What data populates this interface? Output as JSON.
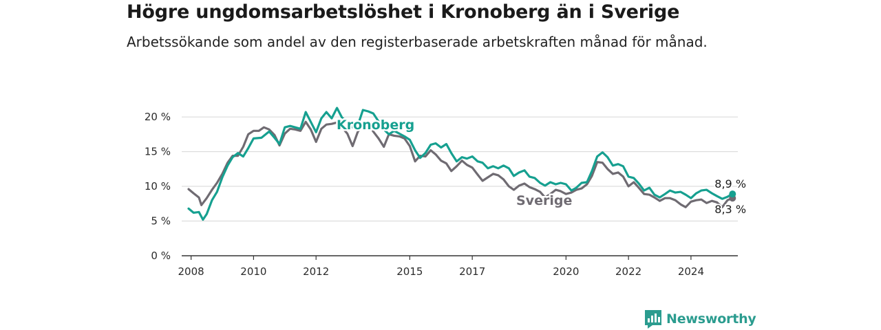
{
  "title": "Högre ungdomsarbetslöshet i Kronoberg än i Sverige",
  "subtitle": "Arbetssökande som andel av den registerbaserade arbetskraften månad för månad.",
  "brand": {
    "name": "Newsworthy",
    "icon": "bar-chart-icon",
    "color": "#2b9c8f"
  },
  "chart_data": {
    "type": "line",
    "title": "Högre ungdomsarbetslöshet i Kronoberg än i Sverige",
    "subtitle": "Arbetssökande som andel av den registerbaserade arbetskraften månad för månad.",
    "xlabel": "",
    "ylabel": "",
    "xlim": [
      2007.7,
      2025.5
    ],
    "ylim": [
      0,
      21
    ],
    "x_ticks": [
      2008,
      2010,
      2012,
      2015,
      2017,
      2020,
      2022,
      2024
    ],
    "x_tick_labels": [
      "2008",
      "2010",
      "2012",
      "2015",
      "2017",
      "2020",
      "2022",
      "2024"
    ],
    "y_ticks": [
      0,
      5,
      10,
      15,
      20
    ],
    "y_tick_labels": [
      "0 %",
      "5 %",
      "10 %",
      "15 %",
      "20 %"
    ],
    "grid": "horizontal",
    "series": [
      {
        "name": "Kronoberg",
        "color": "#16a090",
        "end_label": "8,9 %",
        "points": [
          [
            2007.92,
            6.8
          ],
          [
            2008.08,
            6.2
          ],
          [
            2008.25,
            6.3
          ],
          [
            2008.38,
            5.2
          ],
          [
            2008.5,
            6.0
          ],
          [
            2008.67,
            8.0
          ],
          [
            2008.83,
            9.2
          ],
          [
            2009.0,
            11.3
          ],
          [
            2009.17,
            13.0
          ],
          [
            2009.33,
            14.2
          ],
          [
            2009.5,
            14.8
          ],
          [
            2009.67,
            14.3
          ],
          [
            2009.83,
            15.5
          ],
          [
            2010.0,
            16.9
          ],
          [
            2010.25,
            17.0
          ],
          [
            2010.5,
            17.9
          ],
          [
            2010.67,
            17.0
          ],
          [
            2010.83,
            16.1
          ],
          [
            2011.0,
            18.5
          ],
          [
            2011.17,
            18.7
          ],
          [
            2011.33,
            18.5
          ],
          [
            2011.5,
            18.3
          ],
          [
            2011.67,
            20.7
          ],
          [
            2011.83,
            19.3
          ],
          [
            2012.0,
            17.8
          ],
          [
            2012.17,
            19.8
          ],
          [
            2012.33,
            20.7
          ],
          [
            2012.5,
            19.8
          ],
          [
            2012.67,
            21.3
          ],
          [
            2012.83,
            19.9
          ],
          [
            2013.0,
            19.3
          ],
          [
            2013.17,
            18.5
          ],
          [
            2013.33,
            18.7
          ],
          [
            2013.5,
            21.0
          ],
          [
            2013.67,
            20.8
          ],
          [
            2013.83,
            20.5
          ],
          [
            2014.17,
            18.2
          ],
          [
            2014.33,
            17.5
          ],
          [
            2014.5,
            18.0
          ],
          [
            2014.83,
            17.2
          ],
          [
            2015.0,
            16.7
          ],
          [
            2015.17,
            15.2
          ],
          [
            2015.33,
            14.1
          ],
          [
            2015.5,
            14.8
          ],
          [
            2015.67,
            16.0
          ],
          [
            2015.83,
            16.2
          ],
          [
            2016.0,
            15.6
          ],
          [
            2016.17,
            16.1
          ],
          [
            2016.33,
            14.8
          ],
          [
            2016.5,
            13.6
          ],
          [
            2016.67,
            14.2
          ],
          [
            2016.83,
            14.0
          ],
          [
            2017.0,
            14.3
          ],
          [
            2017.17,
            13.6
          ],
          [
            2017.33,
            13.4
          ],
          [
            2017.5,
            12.6
          ],
          [
            2017.67,
            12.9
          ],
          [
            2017.83,
            12.6
          ],
          [
            2018.0,
            13.0
          ],
          [
            2018.17,
            12.6
          ],
          [
            2018.33,
            11.5
          ],
          [
            2018.5,
            12.0
          ],
          [
            2018.67,
            12.3
          ],
          [
            2018.83,
            11.4
          ],
          [
            2019.0,
            11.2
          ],
          [
            2019.17,
            10.5
          ],
          [
            2019.33,
            10.1
          ],
          [
            2019.5,
            10.6
          ],
          [
            2019.67,
            10.3
          ],
          [
            2019.83,
            10.5
          ],
          [
            2020.0,
            10.3
          ],
          [
            2020.17,
            9.4
          ],
          [
            2020.33,
            9.8
          ],
          [
            2020.5,
            10.5
          ],
          [
            2020.67,
            10.6
          ],
          [
            2020.83,
            12.2
          ],
          [
            2021.0,
            14.3
          ],
          [
            2021.17,
            14.9
          ],
          [
            2021.33,
            14.2
          ],
          [
            2021.5,
            13.0
          ],
          [
            2021.67,
            13.2
          ],
          [
            2021.83,
            12.9
          ],
          [
            2022.0,
            11.4
          ],
          [
            2022.17,
            11.2
          ],
          [
            2022.33,
            10.4
          ],
          [
            2022.5,
            9.4
          ],
          [
            2022.67,
            9.8
          ],
          [
            2022.83,
            8.8
          ],
          [
            2023.0,
            8.4
          ],
          [
            2023.17,
            8.9
          ],
          [
            2023.33,
            9.4
          ],
          [
            2023.5,
            9.1
          ],
          [
            2023.67,
            9.2
          ],
          [
            2023.83,
            8.8
          ],
          [
            2024.0,
            8.3
          ],
          [
            2024.17,
            9.0
          ],
          [
            2024.33,
            9.4
          ],
          [
            2024.5,
            9.5
          ],
          [
            2024.67,
            9.0
          ],
          [
            2024.83,
            8.6
          ],
          [
            2025.0,
            8.2
          ],
          [
            2025.17,
            8.5
          ],
          [
            2025.33,
            8.9
          ]
        ]
      },
      {
        "name": "Sverige",
        "color": "#6f6b72",
        "end_label": "8,3 %",
        "points": [
          [
            2007.92,
            9.6
          ],
          [
            2008.08,
            9.0
          ],
          [
            2008.25,
            8.4
          ],
          [
            2008.33,
            7.3
          ],
          [
            2008.5,
            8.3
          ],
          [
            2008.67,
            9.5
          ],
          [
            2008.83,
            10.5
          ],
          [
            2009.0,
            11.8
          ],
          [
            2009.17,
            13.4
          ],
          [
            2009.33,
            14.4
          ],
          [
            2009.5,
            14.4
          ],
          [
            2009.67,
            15.7
          ],
          [
            2009.83,
            17.5
          ],
          [
            2010.0,
            18.0
          ],
          [
            2010.17,
            18.0
          ],
          [
            2010.33,
            18.5
          ],
          [
            2010.5,
            18.2
          ],
          [
            2010.67,
            17.4
          ],
          [
            2010.83,
            15.9
          ],
          [
            2011.0,
            17.6
          ],
          [
            2011.17,
            18.3
          ],
          [
            2011.33,
            18.2
          ],
          [
            2011.5,
            18.0
          ],
          [
            2011.67,
            19.3
          ],
          [
            2011.83,
            18.2
          ],
          [
            2012.0,
            16.4
          ],
          [
            2012.17,
            18.3
          ],
          [
            2012.33,
            18.9
          ],
          [
            2012.5,
            19.0
          ],
          [
            2012.67,
            19.2
          ],
          [
            2012.83,
            18.5
          ],
          [
            2013.0,
            17.6
          ],
          [
            2013.17,
            15.8
          ],
          [
            2013.33,
            17.8
          ],
          [
            2013.5,
            19.0
          ],
          [
            2013.67,
            18.8
          ],
          [
            2013.83,
            17.9
          ],
          [
            2014.0,
            16.9
          ],
          [
            2014.17,
            15.7
          ],
          [
            2014.33,
            17.5
          ],
          [
            2014.5,
            17.3
          ],
          [
            2014.67,
            17.2
          ],
          [
            2014.83,
            16.9
          ],
          [
            2015.0,
            15.8
          ],
          [
            2015.17,
            13.6
          ],
          [
            2015.33,
            14.4
          ],
          [
            2015.5,
            14.3
          ],
          [
            2015.67,
            15.2
          ],
          [
            2015.83,
            14.6
          ],
          [
            2016.0,
            13.7
          ],
          [
            2016.17,
            13.3
          ],
          [
            2016.33,
            12.2
          ],
          [
            2016.5,
            12.9
          ],
          [
            2016.67,
            13.7
          ],
          [
            2016.83,
            13.1
          ],
          [
            2017.0,
            12.7
          ],
          [
            2017.17,
            11.7
          ],
          [
            2017.33,
            10.8
          ],
          [
            2017.5,
            11.3
          ],
          [
            2017.67,
            11.8
          ],
          [
            2017.83,
            11.6
          ],
          [
            2018.0,
            11.0
          ],
          [
            2018.17,
            10.0
          ],
          [
            2018.33,
            9.5
          ],
          [
            2018.5,
            10.1
          ],
          [
            2018.67,
            10.4
          ],
          [
            2018.83,
            9.9
          ],
          [
            2019.0,
            9.6
          ],
          [
            2019.17,
            9.2
          ],
          [
            2019.33,
            8.4
          ],
          [
            2019.5,
            8.9
          ],
          [
            2019.67,
            9.5
          ],
          [
            2019.83,
            9.3
          ],
          [
            2020.0,
            8.9
          ],
          [
            2020.17,
            9.1
          ],
          [
            2020.33,
            9.5
          ],
          [
            2020.5,
            9.7
          ],
          [
            2020.67,
            10.3
          ],
          [
            2020.83,
            11.5
          ],
          [
            2021.0,
            13.5
          ],
          [
            2021.17,
            13.4
          ],
          [
            2021.33,
            12.5
          ],
          [
            2021.5,
            11.8
          ],
          [
            2021.67,
            12.0
          ],
          [
            2021.83,
            11.4
          ],
          [
            2022.0,
            10.0
          ],
          [
            2022.17,
            10.6
          ],
          [
            2022.33,
            9.8
          ],
          [
            2022.5,
            8.9
          ],
          [
            2022.67,
            8.8
          ],
          [
            2022.83,
            8.4
          ],
          [
            2023.0,
            7.9
          ],
          [
            2023.17,
            8.3
          ],
          [
            2023.33,
            8.3
          ],
          [
            2023.5,
            8.0
          ],
          [
            2023.67,
            7.4
          ],
          [
            2023.83,
            7.0
          ],
          [
            2024.0,
            7.8
          ],
          [
            2024.17,
            8.0
          ],
          [
            2024.33,
            8.1
          ],
          [
            2024.5,
            7.6
          ],
          [
            2024.67,
            7.9
          ],
          [
            2024.83,
            7.7
          ],
          [
            2025.0,
            7.0
          ],
          [
            2025.17,
            8.0
          ],
          [
            2025.33,
            8.3
          ]
        ]
      }
    ]
  }
}
